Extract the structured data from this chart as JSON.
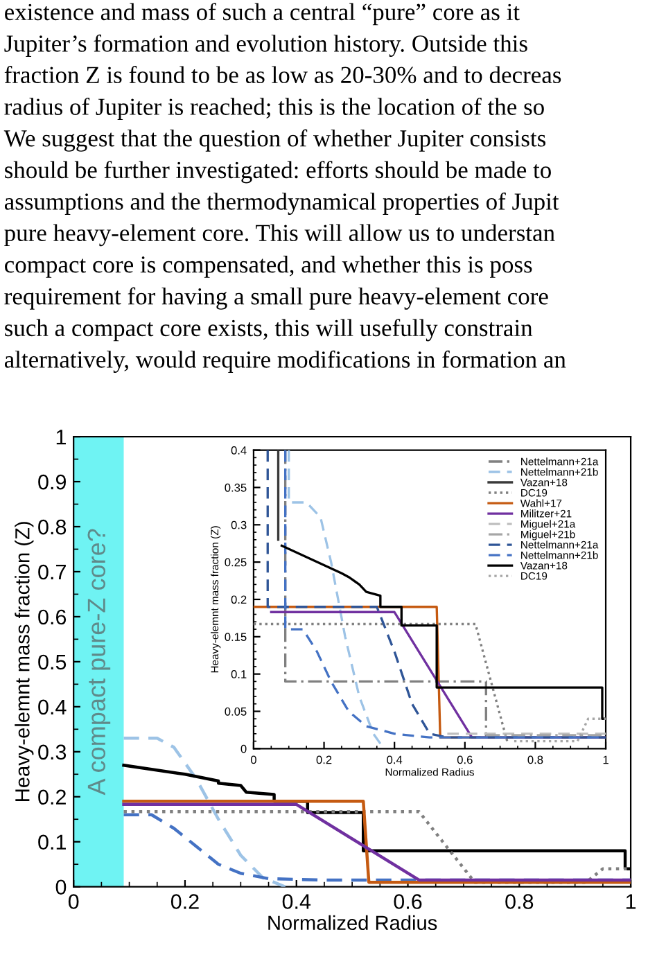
{
  "chart_data": [
    {
      "type": "line",
      "xlabel": "Normalized Radius",
      "ylabel": "Heavy-elemnt mass fraction (Z)",
      "xlim": [
        0,
        1
      ],
      "ylim": [
        0,
        1
      ],
      "xticks": [
        0,
        0.2,
        0.4,
        0.6,
        0.8,
        1
      ],
      "yticks": [
        0,
        0.1,
        0.2,
        0.3,
        0.4,
        0.5,
        0.6,
        0.7,
        0.8,
        0.9,
        1
      ],
      "annotations": [
        "existence and mass of such a central “pure” core as it",
        "Jupiter’s formation and evolution history. Outside this",
        "fraction Z is found to be as low as 20-30% and to decreas",
        "radius of Jupiter is reached; this is the location of the so",
        "We suggest that the question of whether Jupiter consists",
        "should be further investigated: efforts should be made to",
        "assumptions and the thermodynamical properties of Jupit",
        "pure heavy-element core. This will allow us to understan",
        "compact core is compensated, and whether this is poss",
        "requirement for having a small pure heavy-element core",
        "such a compact core exists, this will usefully constrain",
        "alternatively, would require modifications in formation an"
      ],
      "bands": [
        {
          "axis": "x",
          "from": 0,
          "to": 0.09,
          "label": "A compact pure-Z core?",
          "color": "#6ff3f3"
        }
      ],
      "series": [
        {
          "color": "#9dc3e6",
          "line_style": "dashed",
          "x": [
            0.09,
            0.15,
            0.18,
            0.22,
            0.26,
            0.3,
            0.34,
            0.38
          ],
          "values": [
            0.33,
            0.33,
            0.31,
            0.24,
            0.15,
            0.07,
            0.02,
            0.0
          ]
        },
        {
          "color": "#4472c4",
          "line_style": "dashed",
          "x": [
            0.09,
            0.14,
            0.18,
            0.22,
            0.26,
            0.3,
            0.35,
            0.45,
            1
          ],
          "values": [
            0.16,
            0.16,
            0.13,
            0.09,
            0.05,
            0.03,
            0.018,
            0.015,
            0.015
          ]
        },
        {
          "color": "#000000",
          "line_style": "solid",
          "x": [
            0.09,
            0.2,
            0.26,
            0.26,
            0.3,
            0.31,
            0.36,
            0.36,
            0.42,
            0.42,
            0.52,
            0.52,
            0.99,
            0.99,
            1
          ],
          "values": [
            0.27,
            0.25,
            0.235,
            0.23,
            0.225,
            0.21,
            0.205,
            0.19,
            0.19,
            0.165,
            0.165,
            0.08,
            0.08,
            0.04,
            0.04
          ]
        },
        {
          "color": "#808080",
          "line_style": "dotted",
          "x": [
            0.09,
            0.62,
            0.72,
            0.92,
            0.95,
            1
          ],
          "values": [
            0.167,
            0.167,
            0.01,
            0.01,
            0.04,
            0.04
          ]
        },
        {
          "color": "#c55a11",
          "line_style": "solid",
          "x": [
            0.09,
            0.52,
            0.53,
            1
          ],
          "values": [
            0.19,
            0.19,
            0.01,
            0.01
          ]
        },
        {
          "color": "#7030a0",
          "line_style": "solid",
          "x": [
            0.09,
            0.4,
            0.62,
            1
          ],
          "values": [
            0.183,
            0.183,
            0.015,
            0.015
          ]
        }
      ]
    },
    {
      "type": "line",
      "xlabel": "Normalized Radius",
      "ylabel": "Heavy-elemnt mass fraction (Z)",
      "xlim": [
        0,
        1
      ],
      "ylim": [
        0,
        0.4
      ],
      "xticks": [
        0,
        0.2,
        0.4,
        0.6,
        0.8,
        1
      ],
      "yticks": [
        0,
        0.05,
        0.1,
        0.15,
        0.2,
        0.25,
        0.3,
        0.35,
        0.4
      ],
      "legend": "top right",
      "series": [
        {
          "name": "Nettelmann+21a",
          "color": "#808080",
          "line_style": "dashdot",
          "x": [
            0.09,
            0.09,
            0.66,
            0.66,
            1
          ],
          "values": [
            0.4,
            0.09,
            0.09,
            0.015,
            0.015
          ]
        },
        {
          "name": "Nettelmann+21b",
          "color": "#9dc3e6",
          "line_style": "dashed",
          "x": [
            0.1,
            0.1,
            0.15,
            0.19,
            0.22,
            0.26,
            0.3,
            0.34,
            0.37
          ],
          "values": [
            0.4,
            0.33,
            0.33,
            0.31,
            0.25,
            0.15,
            0.07,
            0.02,
            0.0
          ]
        },
        {
          "name": "Vazan+18",
          "color": "#3a3a3a",
          "line_style": "solid",
          "x": [
            0.07,
            0.07
          ],
          "values": [
            0.4,
            0.28
          ]
        },
        {
          "name": "DC19",
          "color": "#808080",
          "line_style": "dotted",
          "x": [
            0.0,
            0.63,
            0.72
          ],
          "values": [
            0.167,
            0.167,
            0.01
          ]
        },
        {
          "name": "Wahl+17",
          "color": "#c55a11",
          "line_style": "solid",
          "x": [
            0.0,
            0.52,
            0.53,
            1
          ],
          "values": [
            0.19,
            0.19,
            0.015,
            0.015
          ]
        },
        {
          "name": "Militzer+21",
          "color": "#7030a0",
          "line_style": "solid",
          "x": [
            0.05,
            0.4,
            0.62,
            1
          ],
          "values": [
            0.183,
            0.183,
            0.015,
            0.015
          ]
        },
        {
          "name": "Miguel+21a",
          "color": "#bfbfbf",
          "line_style": "dashed",
          "x": [
            0.55,
            1
          ],
          "values": [
            0.02,
            0.02
          ]
        },
        {
          "name": "Miguel+21b",
          "color": "#a6a6a6",
          "line_style": "dashdot",
          "x": [
            0.66,
            1
          ],
          "values": [
            0.018,
            0.018
          ]
        },
        {
          "name": "Nettelmann+21a",
          "color": "#2f5597",
          "line_style": "dashed",
          "x": [
            0.04,
            0.04,
            0.35,
            0.4,
            0.45,
            0.5,
            0.55,
            1
          ],
          "values": [
            0.4,
            0.19,
            0.19,
            0.13,
            0.06,
            0.02,
            0.015,
            0.015
          ]
        },
        {
          "name": "Nettelmann+21b",
          "color": "#4472c4",
          "line_style": "dashed",
          "x": [
            0.09,
            0.09,
            0.14,
            0.18,
            0.22,
            0.27,
            0.32,
            0.4,
            0.5,
            1
          ],
          "values": [
            0.4,
            0.16,
            0.16,
            0.13,
            0.09,
            0.05,
            0.03,
            0.02,
            0.015,
            0.015
          ]
        },
        {
          "name": "Vazan+18",
          "color": "#000000",
          "line_style": "solid",
          "x": [
            0.08,
            0.25,
            0.27,
            0.3,
            0.32,
            0.36,
            0.36,
            0.42,
            0.42,
            0.52,
            0.52,
            0.99,
            0.99,
            1
          ],
          "values": [
            0.272,
            0.235,
            0.23,
            0.22,
            0.21,
            0.205,
            0.19,
            0.19,
            0.165,
            0.165,
            0.082,
            0.082,
            0.04,
            0.04
          ]
        },
        {
          "name": "DC19",
          "color": "#a6a6a6",
          "line_style": "dotted",
          "x": [
            0.74,
            0.92,
            0.95,
            1
          ],
          "values": [
            0.01,
            0.01,
            0.04,
            0.04
          ]
        }
      ]
    }
  ]
}
